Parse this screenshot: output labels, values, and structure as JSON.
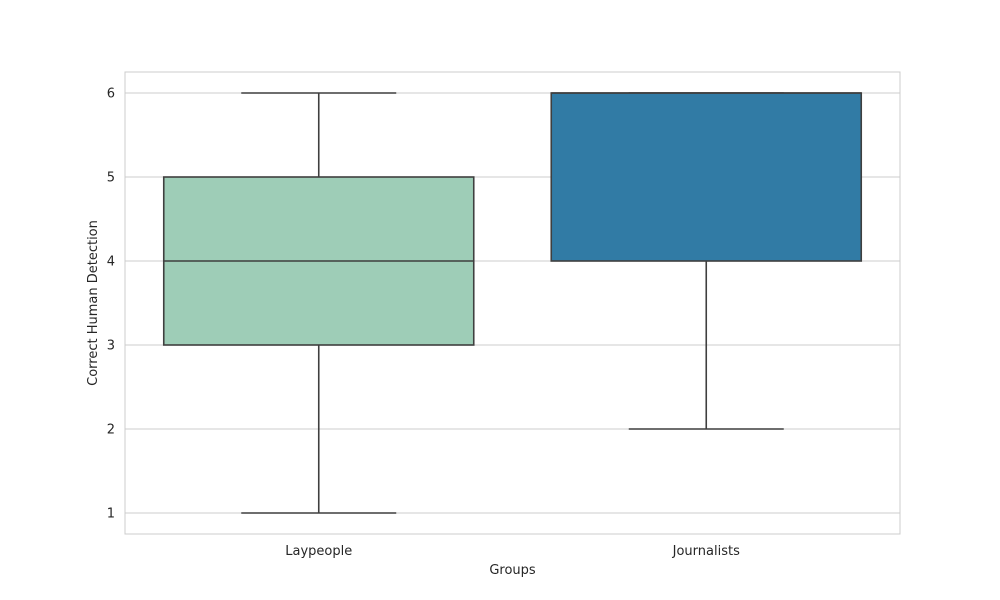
{
  "chart_data": {
    "type": "box",
    "xlabel": "Groups",
    "ylabel": "Correct Human Detection",
    "categories": [
      "Laypeople",
      "Journalists"
    ],
    "boxes": [
      {
        "category": "Laypeople",
        "whisker_low": 1,
        "q1": 3,
        "median": 4,
        "q3": 5,
        "whisker_high": 6,
        "color": "#9ecdb7"
      },
      {
        "category": "Journalists",
        "whisker_low": 2,
        "q1": 4,
        "median": 6,
        "q3": 6,
        "whisker_high": 6,
        "color": "#317ba5"
      }
    ],
    "yticks": [
      1,
      2,
      3,
      4,
      5,
      6
    ],
    "ylim": [
      0.75,
      6.25
    ],
    "grid": true
  }
}
